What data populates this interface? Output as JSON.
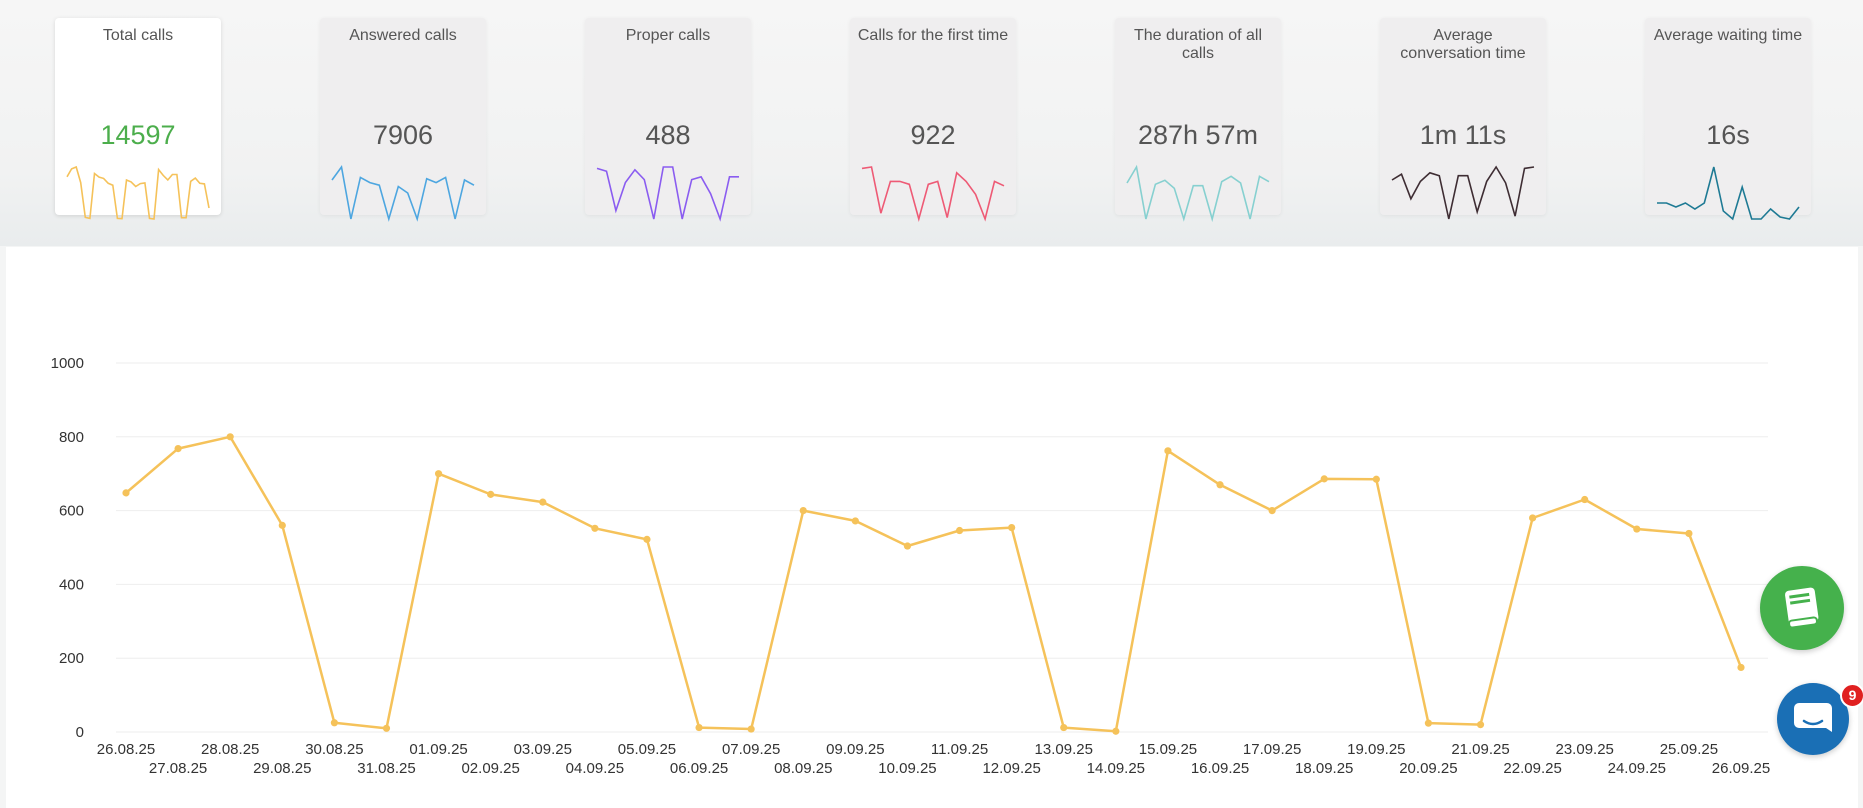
{
  "kpis": [
    {
      "title": "Total calls",
      "value": "14597",
      "color": "#f5c25a",
      "value_color": "#4cae4c",
      "active": true,
      "spark": [
        650,
        770,
        800,
        560,
        25,
        10,
        700,
        645,
        625,
        550,
        520,
        10,
        5,
        600,
        570,
        500,
        545,
        555,
        10,
        0,
        760,
        670,
        600,
        685,
        685,
        20,
        20,
        580,
        630,
        550,
        540,
        170
      ]
    },
    {
      "title": "Answered calls",
      "value": "7906",
      "color": "#4da6e0",
      "value_color": "#555555",
      "active": false,
      "spark": [
        300,
        400,
        0,
        320,
        280,
        260,
        0,
        250,
        200,
        0,
        310,
        280,
        320,
        0,
        300,
        260
      ]
    },
    {
      "title": "Proper calls",
      "value": "488",
      "color": "#8a5cf0",
      "value_color": "#555555",
      "active": false,
      "spark": [
        360,
        340,
        60,
        260,
        350,
        280,
        0,
        370,
        370,
        0,
        280,
        300,
        180,
        0,
        300,
        300
      ]
    },
    {
      "title": "Calls for the first time",
      "value": "922",
      "color": "#ee5a75",
      "value_color": "#555555",
      "active": false,
      "spark": [
        370,
        380,
        60,
        280,
        280,
        260,
        20,
        260,
        280,
        30,
        340,
        280,
        190,
        20,
        280,
        250
      ]
    },
    {
      "title": "The duration of all calls",
      "value": "287h 57m",
      "color": "#86d0d0",
      "value_color": "#555555",
      "active": false,
      "spark": [
        270,
        390,
        0,
        260,
        290,
        230,
        0,
        250,
        250,
        0,
        280,
        320,
        270,
        0,
        320,
        280
      ]
    },
    {
      "title": "Average conversation time",
      "value": "1m 11s",
      "color": "#3e2d33",
      "value_color": "#555555",
      "active": false,
      "spark": [
        270,
        310,
        140,
        260,
        320,
        300,
        0,
        300,
        300,
        50,
        260,
        360,
        250,
        20,
        350,
        360
      ]
    },
    {
      "title": "Average waiting time",
      "value": "16s",
      "color": "#1e7a94",
      "value_color": "#555555",
      "active": false,
      "spark": [
        240,
        240,
        220,
        240,
        210,
        240,
        420,
        200,
        160,
        320,
        160,
        160,
        210,
        170,
        160,
        220
      ]
    }
  ],
  "chart_data": {
    "type": "line",
    "title": "",
    "xlabel": "",
    "ylabel": "",
    "ylim": [
      0,
      1000
    ],
    "yticks": [
      "0",
      "200",
      "400",
      "600",
      "800",
      "1000"
    ],
    "grid": true,
    "color": "#f5c25a",
    "categories": [
      "26.08.25",
      "27.08.25",
      "28.08.25",
      "29.08.25",
      "30.08.25",
      "31.08.25",
      "01.09.25",
      "02.09.25",
      "03.09.25",
      "04.09.25",
      "05.09.25",
      "06.09.25",
      "07.09.25",
      "08.09.25",
      "09.09.25",
      "10.09.25",
      "11.09.25",
      "12.09.25",
      "13.09.25",
      "14.09.25",
      "15.09.25",
      "16.09.25",
      "17.09.25",
      "18.09.25",
      "19.09.25",
      "20.09.25",
      "21.09.25",
      "22.09.25",
      "23.09.25",
      "24.09.25",
      "25.09.25",
      "26.09.25"
    ],
    "series": [
      {
        "values": [
          648,
          768,
          800,
          560,
          25,
          10,
          700,
          644,
          623,
          552,
          522,
          12,
          8,
          600,
          572,
          504,
          546,
          554,
          12,
          2,
          762,
          670,
          600,
          686,
          685,
          24,
          20,
          580,
          630,
          550,
          538,
          175
        ]
      }
    ]
  },
  "widgets": {
    "book_icon": "book-icon",
    "chat_icon": "chat-icon",
    "chat_badge": "9"
  }
}
